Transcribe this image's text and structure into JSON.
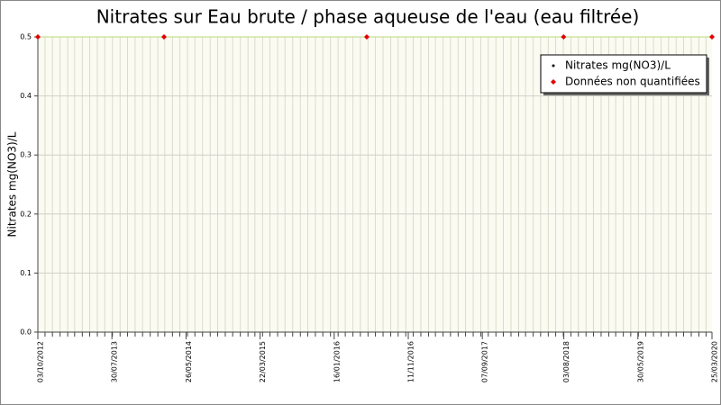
{
  "chart_data": {
    "type": "scatter",
    "title": "Nitrates sur Eau brute / phase aqueuse de l'eau (eau filtrée)",
    "y_label": "Nitrates mg(NO3)/L",
    "xlim": [
      "03/10/2012",
      "25/03/2020"
    ],
    "xticks": [
      "03/10/2012",
      "30/07/2013",
      "26/05/2014",
      "22/03/2015",
      "16/01/2016",
      "11/11/2016",
      "07/09/2017",
      "03/08/2018",
      "30/05/2019",
      "25/03/2020"
    ],
    "ylim": [
      0,
      0.5
    ],
    "yticks": [
      {
        "value": 0,
        "label": "0.0"
      },
      0.1,
      0.2,
      0.3,
      0.4,
      0.5
    ],
    "grid": true,
    "legend": "upper right",
    "series": [
      {
        "name": "Nitrates mg(NO3)/L",
        "color": "#000000",
        "x": [],
        "values": []
      },
      {
        "name": "Données non quantifiées",
        "color": "#e00000",
        "x": [
          "03/10/2012",
          "26/02/2014",
          "27/05/2016",
          "02/08/2018",
          "25/03/2020"
        ],
        "values": [
          0.5,
          0.5,
          0.5,
          0.5,
          0.5
        ]
      }
    ]
  }
}
